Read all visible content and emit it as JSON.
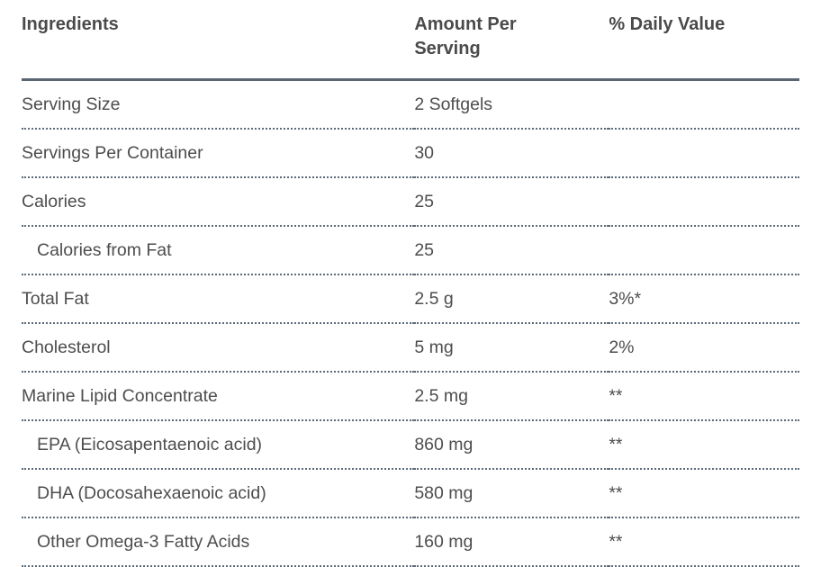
{
  "colors": {
    "header_rule": "#596672",
    "row_rule_dotted": "#5c6a77",
    "header_text": "#4a4a4a",
    "body_text": "#4d4d4d",
    "background": "#ffffff"
  },
  "table": {
    "columns": [
      {
        "label": "Ingredients"
      },
      {
        "label": "Amount Per Serving"
      },
      {
        "label": "% Daily Value"
      }
    ],
    "rows": [
      {
        "ingredient": "Serving Size",
        "amount": "2 Softgels",
        "daily_value": "",
        "indent": false
      },
      {
        "ingredient": "Servings Per Container",
        "amount": "30",
        "daily_value": "",
        "indent": false
      },
      {
        "ingredient": "Calories",
        "amount": "25",
        "daily_value": "",
        "indent": false
      },
      {
        "ingredient": "Calories from Fat",
        "amount": "25",
        "daily_value": "",
        "indent": true
      },
      {
        "ingredient": "Total Fat",
        "amount": "2.5 g",
        "daily_value": "3%*",
        "indent": false
      },
      {
        "ingredient": "Cholesterol",
        "amount": "5 mg",
        "daily_value": "2%",
        "indent": false
      },
      {
        "ingredient": "Marine Lipid Concentrate",
        "amount": "2.5 mg",
        "daily_value": "**",
        "indent": false
      },
      {
        "ingredient": "EPA (Eicosapentaenoic acid)",
        "amount": "860 mg",
        "daily_value": "**",
        "indent": true
      },
      {
        "ingredient": "DHA (Docosahexaenoic acid)",
        "amount": "580 mg",
        "daily_value": "**",
        "indent": true
      },
      {
        "ingredient": "Other Omega-3 Fatty Acids",
        "amount": "160 mg",
        "daily_value": "**",
        "indent": true
      }
    ]
  }
}
